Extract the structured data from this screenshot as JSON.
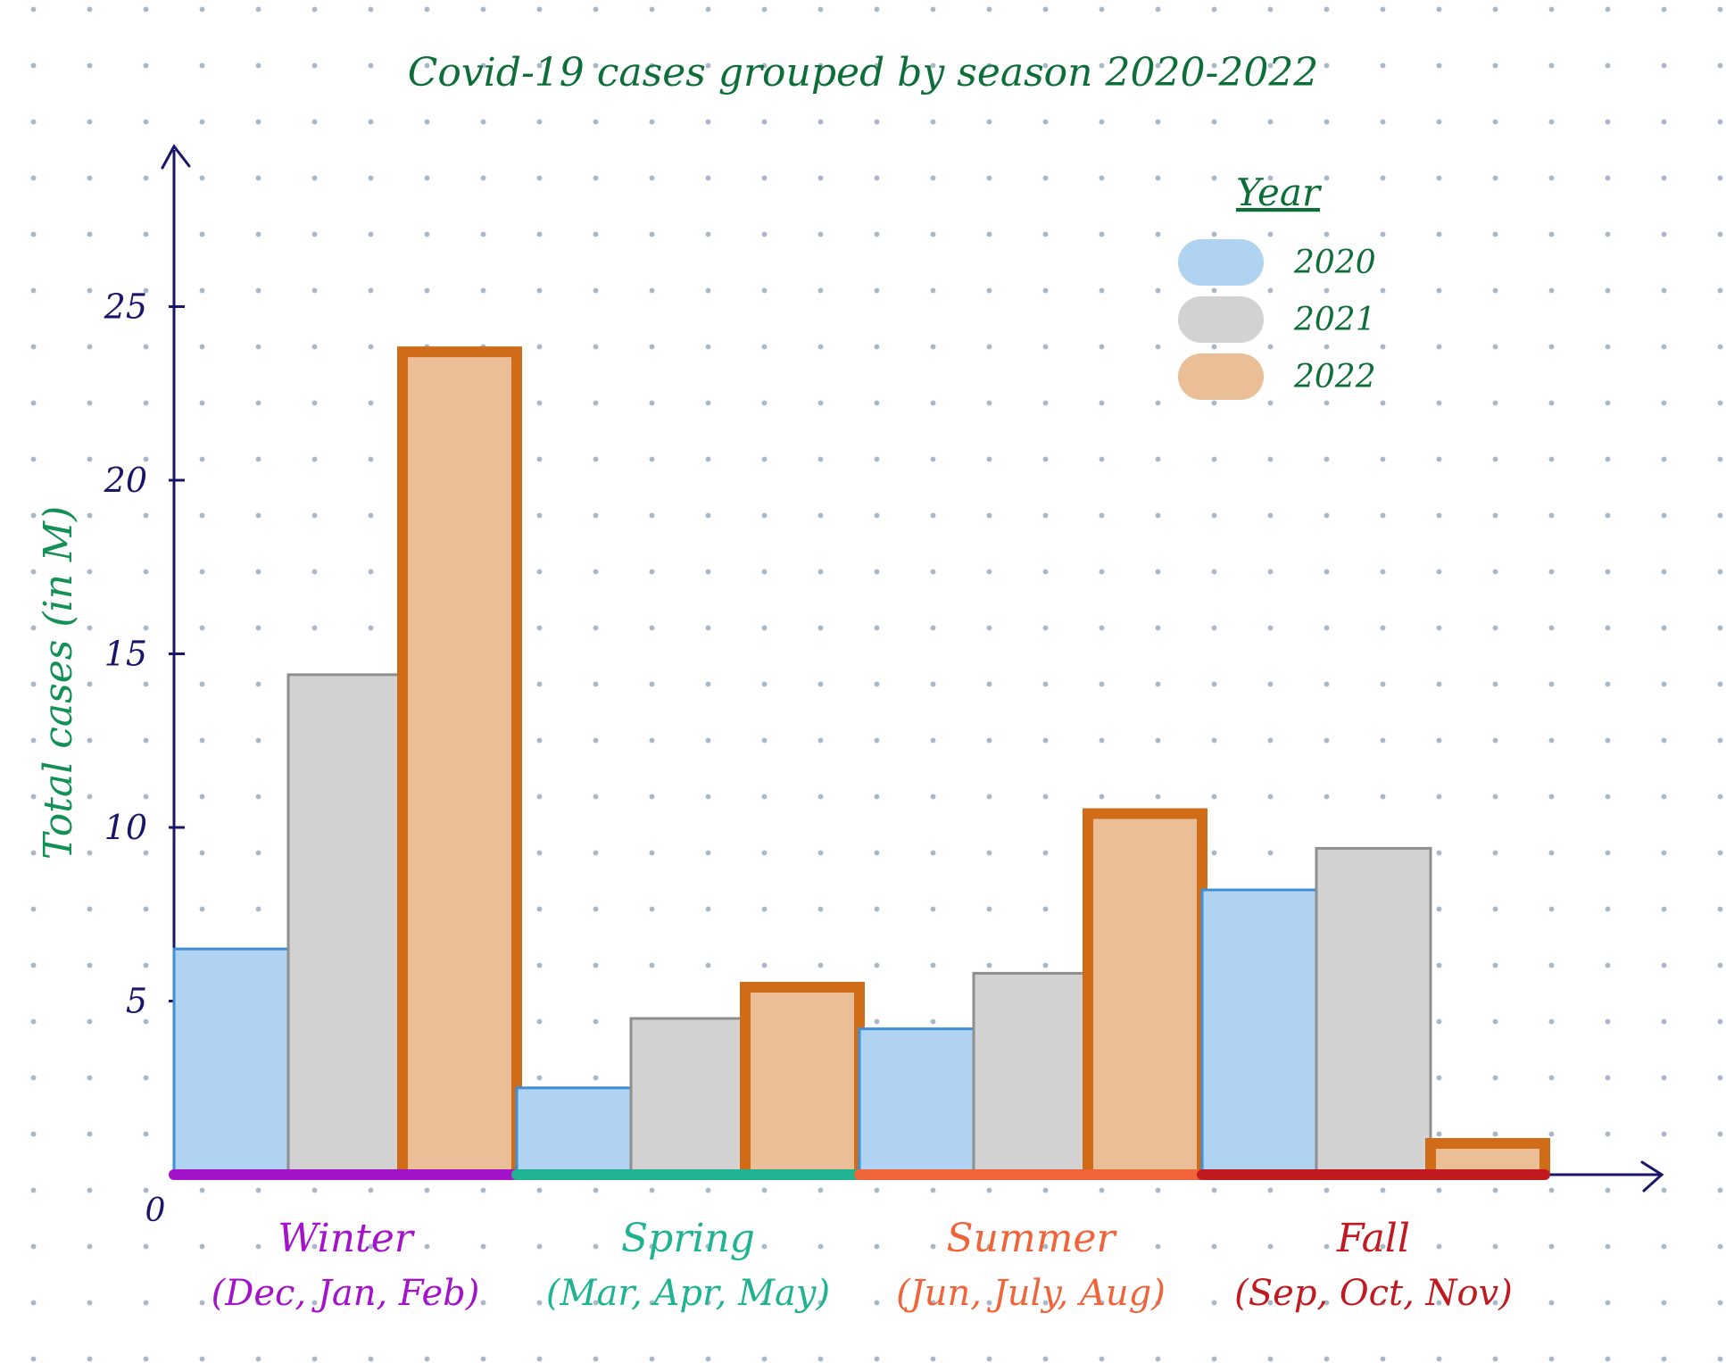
{
  "chart_data": {
    "type": "bar",
    "title": "Covid-19 cases grouped by season 2020-2022",
    "ylabel": "Total cases (in M)",
    "xlabel": "",
    "ylim": [
      0,
      30
    ],
    "yticks": [
      5,
      10,
      15,
      20,
      25
    ],
    "origin_label": "0",
    "legend_title": "Year",
    "legend_position": "top-right",
    "grid": false,
    "categories": [
      "Winter",
      "Spring",
      "Summer",
      "Fall"
    ],
    "category_subtitles": [
      "(Dec, Jan, Feb)",
      "(Mar, Apr, May)",
      "(Jun, July, Aug)",
      "(Sep, Oct, Nov)"
    ],
    "category_colors": [
      "#a412c9",
      "#1fb391",
      "#f0643a",
      "#c0191f"
    ],
    "series": [
      {
        "name": "2020",
        "values": [
          6.5,
          2.5,
          4.2,
          8.2
        ],
        "fill": "#afd3f0",
        "stroke": "#3f8fd8"
      },
      {
        "name": "2021",
        "values": [
          14.4,
          4.5,
          5.8,
          9.4
        ],
        "fill": "#d2d2d2",
        "stroke": "#8f8f8f"
      },
      {
        "name": "2022",
        "values": [
          23.7,
          5.4,
          10.4,
          0.9
        ],
        "fill": "#eabe96",
        "stroke": "#d06b18"
      }
    ],
    "colors": {
      "axis": "#19156a",
      "title": "#0e6e3a",
      "ylabel": "#139056",
      "legend_text": "#0e6e3a"
    }
  }
}
